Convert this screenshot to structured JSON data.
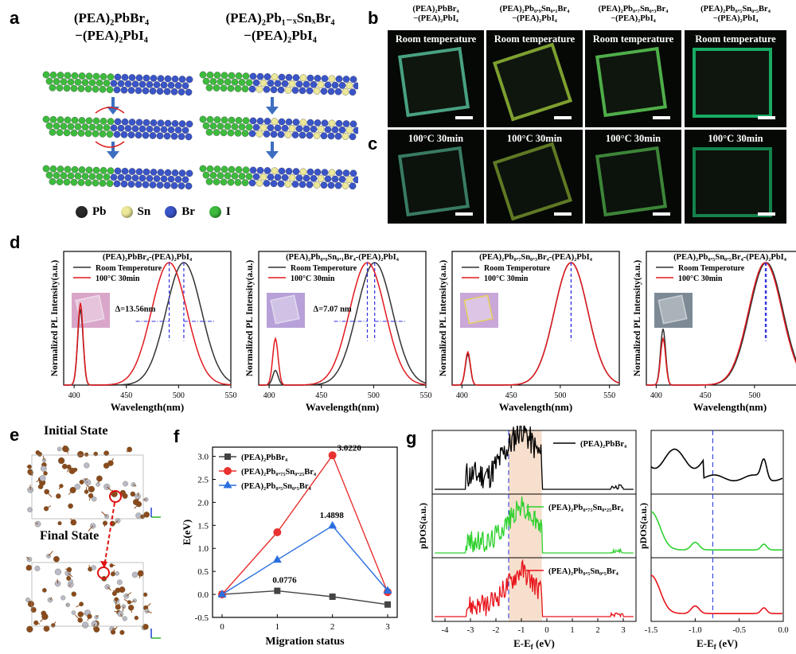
{
  "panel_labels": {
    "a": "a",
    "b": "b",
    "c": "c",
    "d": "d",
    "e": "e",
    "f": "f",
    "g": "g"
  },
  "panel_a": {
    "left_title_line1": "(PEA)₂PbBr₄",
    "left_title_line2": "−(PEA)₂PbI₄",
    "right_title_line1": "(PEA)₂Pb₁₋ₓSnₓBr₄",
    "right_title_line2": "−(PEA)₂PbI₄",
    "legend": [
      {
        "symbol": "Pb",
        "color": "#2a2a2a"
      },
      {
        "symbol": "Sn",
        "color": "#ece89a"
      },
      {
        "symbol": "Br",
        "color": "#3a55c8"
      },
      {
        "symbol": "I",
        "color": "#3dbb3d"
      }
    ]
  },
  "panel_b": {
    "column_headers": [
      {
        "line1": "(PEA)₂PbBr₄",
        "line2": "−(PEA)₂PbI₄"
      },
      {
        "line1": "(PEA)₂Pb₀.₉Sn₀.₁Br₄",
        "line2": "−(PEA)₂PbI₄"
      },
      {
        "line1": "(PEA)₂Pb₀.₇Sn₀.₃Br₄",
        "line2": "−(PEA)₂PbI₄"
      },
      {
        "line1": "(PEA)₂Pb₀.₅Sn₀.₅Br₄",
        "line2": "−(PEA)₂PbI₄"
      }
    ],
    "row_b_label": "Room temperature",
    "row_c_label": "100°C 30min"
  },
  "panel_d": {
    "ylabel": "Normalized PL Intensity(a.u.)",
    "xlabel": "Wavelength(nm)",
    "legend_rt": "Room Temperoture",
    "legend_ht": "100°C 30min",
    "colors": {
      "rt": "#333333",
      "ht": "#e0191e"
    },
    "subplots": [
      {
        "title": "(PEA)₂PbBr₄-(PEA)₂PbI₄",
        "annotation": "Δ=13.56nm"
      },
      {
        "title": "(PEA)₂Pb₀.₉Sn₀.₁Br₄-(PEA)₂PbI₄",
        "annotation": "Δ=7.07 nm"
      },
      {
        "title": "(PEA)₂Pb₀.₇Sn₀.₃Br₄-(PEA)₂PbI₄",
        "annotation": ""
      },
      {
        "title": "(PEA)₂Pb₀.₅Sn₀.₅Br₄-(PEA)₂PbI₄",
        "annotation": ""
      }
    ],
    "xticks": [
      "400",
      "450",
      "500",
      "550"
    ]
  },
  "panel_e": {
    "initial": "Initial State",
    "final": "Final State"
  },
  "panel_f": {
    "ylabel": "E(eV)",
    "xlabel": "Migration status",
    "annotations": [
      "3.0220",
      "1.4898",
      "0.0776"
    ],
    "xticks": [
      "0",
      "1",
      "2",
      "3"
    ],
    "yticks": [
      "-0.5",
      "0.0",
      "0.5",
      "1.0",
      "1.5",
      "2.0",
      "2.5",
      "3.0"
    ]
  },
  "panel_g": {
    "ylabel": "pDOS(a.u.)",
    "xlabel": "E-E",
    "xlabel_sub": "f",
    "xlabel_unit": " (eV)",
    "series_labels": [
      "(PEA)₂PbBr₄",
      "(PEA)₂Pb₀.₇₅Sn₀.₂₅Br₄",
      "(PEA)₂Pb₀.₅Sn₀.₅Br₄"
    ],
    "colors": [
      "#000000",
      "#2fd12f",
      "#e8141b"
    ],
    "xticks_left": [
      "-4",
      "-3",
      "-2",
      "-1",
      "0",
      "1",
      "2",
      "3"
    ],
    "xticks_right": [
      "-1.5",
      "-1.0",
      "-0.5",
      "0.0"
    ]
  },
  "chart_data": [
    {
      "type": "line",
      "title": "(PEA)₂PbBr₄-(PEA)₂PbI₄",
      "xlabel": "Wavelength(nm)",
      "ylabel": "Normalized PL Intensity(a.u.)",
      "xlim": [
        390,
        550
      ],
      "series": [
        {
          "name": "Room Temperoture",
          "peaks": [
            {
              "center": 406,
              "height": 0.62
            },
            {
              "center": 505,
              "height": 1.0
            }
          ]
        },
        {
          "name": "100°C 30min",
          "peaks": [
            {
              "center": 406,
              "height": 0.67
            },
            {
              "center": 491,
              "height": 1.0
            }
          ]
        }
      ]
    },
    {
      "type": "line",
      "title": "(PEA)₂Pb₀.₉Sn₀.₁Br₄-(PEA)₂PbI₄",
      "xlabel": "Wavelength(nm)",
      "ylabel": "Normalized PL Intensity(a.u.)",
      "xlim": [
        390,
        550
      ],
      "series": [
        {
          "name": "Room Temperoture",
          "peaks": [
            {
              "center": 406,
              "height": 0.12
            },
            {
              "center": 501,
              "height": 1.0
            }
          ]
        },
        {
          "name": "100°C 30min",
          "peaks": [
            {
              "center": 406,
              "height": 0.38
            },
            {
              "center": 494,
              "height": 1.0
            }
          ]
        }
      ]
    },
    {
      "type": "line",
      "title": "(PEA)₂Pb₀.₇Sn₀.₃Br₄-(PEA)₂PbI₄",
      "xlabel": "Wavelength(nm)",
      "ylabel": "Normalized PL Intensity(a.u.)",
      "xlim": [
        390,
        560
      ],
      "series": [
        {
          "name": "Room Temperoture",
          "peaks": [
            {
              "center": 406,
              "height": 0.25
            },
            {
              "center": 511,
              "height": 1.0
            }
          ]
        },
        {
          "name": "100°C 30min",
          "peaks": [
            {
              "center": 406,
              "height": 0.27
            },
            {
              "center": 511,
              "height": 1.0
            }
          ]
        }
      ]
    },
    {
      "type": "line",
      "title": "(PEA)₂Pb₀.₅Sn₀.₅Br₄-(PEA)₂PbI₄",
      "xlabel": "Wavelength(nm)",
      "ylabel": "Normalized PL Intensity(a.u.)",
      "xlim": [
        390,
        560
      ],
      "series": [
        {
          "name": "Room Temperoture",
          "peaks": [
            {
              "center": 407,
              "height": 0.46
            },
            {
              "center": 512,
              "height": 1.0
            }
          ]
        },
        {
          "name": "100°C 30min",
          "peaks": [
            {
              "center": 407,
              "height": 0.38
            },
            {
              "center": 511,
              "height": 1.0
            }
          ]
        }
      ]
    },
    {
      "type": "line",
      "xlabel": "Migration status",
      "ylabel": "E(eV)",
      "ylim": [
        -0.5,
        3.2
      ],
      "x": [
        0,
        1,
        2,
        3
      ],
      "series": [
        {
          "name": "(PEA)₂PbBr₄",
          "values": [
            0.0,
            0.0776,
            -0.05,
            -0.22
          ],
          "color": "#444444",
          "marker": "square"
        },
        {
          "name": "(PEA)₂Pb₀.₇₅Sn₀.₂₅Br₄",
          "values": [
            0.0,
            1.35,
            3.022,
            0.05
          ],
          "color": "#e8322f",
          "marker": "circle"
        },
        {
          "name": "(PEA)₂Pb₀.₅Sn₀.₅Br₄",
          "values": [
            0.0,
            0.75,
            1.4898,
            0.08
          ],
          "color": "#2a6fe0",
          "marker": "triangle"
        }
      ]
    }
  ]
}
